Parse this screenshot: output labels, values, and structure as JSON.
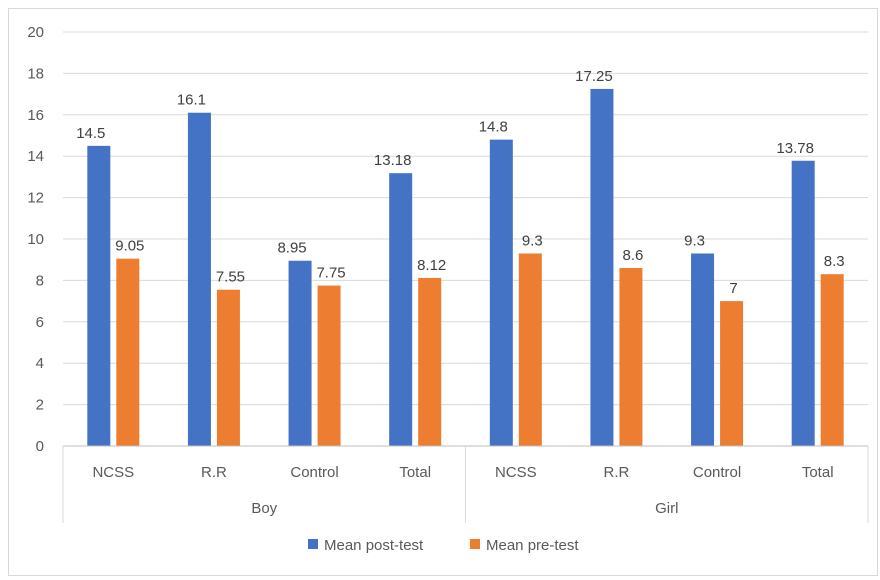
{
  "chart_data": {
    "type": "bar",
    "title": "",
    "xlabel": "",
    "ylabel": "",
    "ylim": [
      0,
      20
    ],
    "yticks": [
      0,
      2,
      4,
      6,
      8,
      10,
      12,
      14,
      16,
      18,
      20
    ],
    "grid": true,
    "legend_position": "bottom",
    "groups": [
      {
        "label": "Boy",
        "categories": [
          "NCSS",
          "R.R",
          "Control",
          "Total"
        ]
      },
      {
        "label": "Girl",
        "categories": [
          "NCSS",
          "R.R",
          "Control",
          "Total"
        ]
      }
    ],
    "series": [
      {
        "name": "Mean post-test",
        "color": "#4472C4",
        "values": [
          14.5,
          16.1,
          8.95,
          13.18,
          14.8,
          17.25,
          9.3,
          13.78
        ],
        "labels": [
          "14.5",
          "16.1",
          "8.95",
          "13.18",
          "14.8",
          "17.25",
          "9.3",
          "13.78"
        ]
      },
      {
        "name": "Mean pre-test",
        "color": "#ED7D31",
        "values": [
          9.05,
          7.55,
          7.75,
          8.12,
          9.3,
          8.6,
          7,
          8.3
        ],
        "labels": [
          "9.05",
          "7.55",
          "7.75",
          "8.12",
          "9.3",
          "8.6",
          "7",
          "8.3"
        ]
      }
    ]
  }
}
